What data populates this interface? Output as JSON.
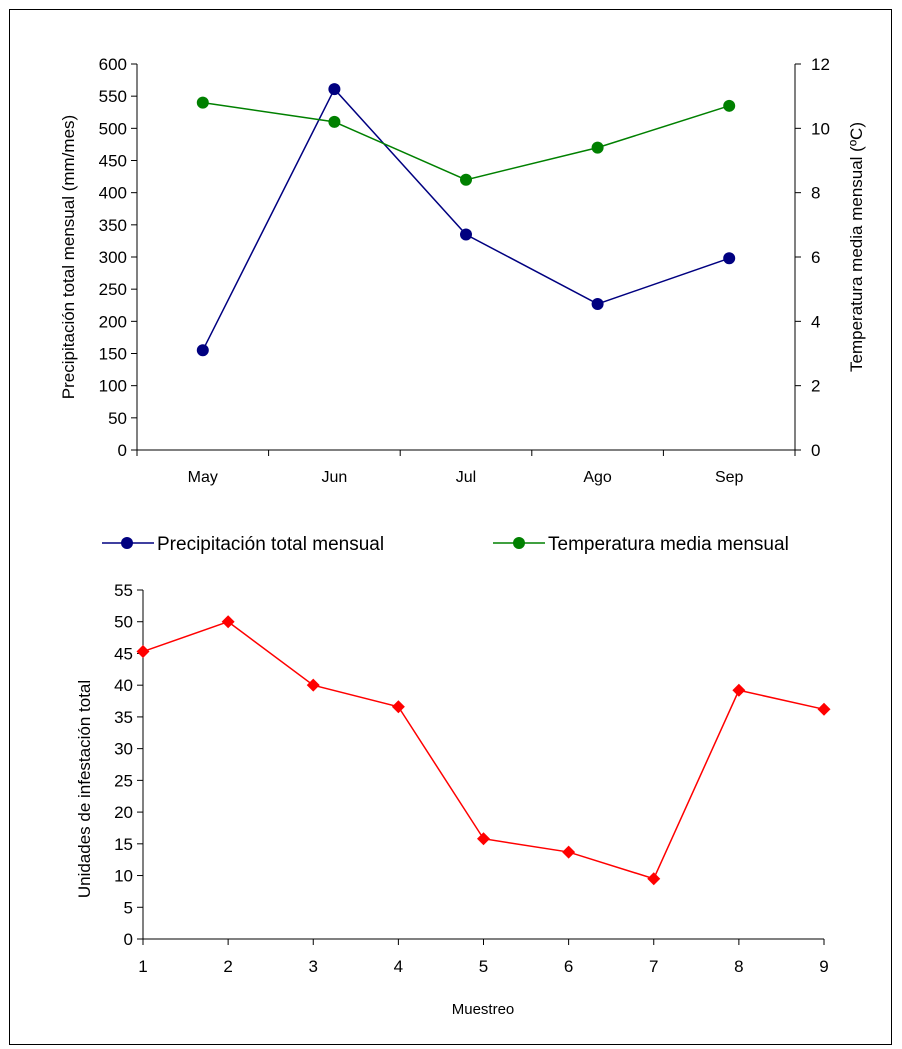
{
  "chart_data": [
    {
      "type": "line",
      "categories": [
        "May",
        "Jun",
        "Jul",
        "Ago",
        "Sep"
      ],
      "ylabel": "Precipitación total mensual (mm/mes)",
      "y2label": "Temperatura media mensual (ºC)",
      "ylim": [
        0,
        600
      ],
      "y2lim": [
        0,
        12
      ],
      "yticks": [
        "0",
        "50",
        "100",
        "150",
        "200",
        "250",
        "300",
        "350",
        "400",
        "450",
        "500",
        "550",
        "600"
      ],
      "y2ticks": [
        "0",
        "2",
        "4",
        "6",
        "8",
        "10",
        "12"
      ],
      "legend_position": "bottom",
      "grid": false,
      "series": [
        {
          "name": "Precipitación total mensual",
          "axis": "left",
          "color": "#000080",
          "marker": "circle",
          "values": [
            155,
            561,
            335,
            227,
            298
          ]
        },
        {
          "name": "Temperatura media mensual",
          "axis": "right",
          "color": "#008000",
          "marker": "circle",
          "values": [
            10.8,
            10.2,
            8.4,
            9.4,
            10.7
          ]
        }
      ]
    },
    {
      "type": "line",
      "x": [
        "1",
        "2",
        "3",
        "4",
        "5",
        "6",
        "7",
        "8",
        "9"
      ],
      "xlabel": "Muestreo",
      "ylabel": "Unidades de infestación total",
      "ylim": [
        0,
        55
      ],
      "yticks": [
        "0",
        "5",
        "10",
        "15",
        "20",
        "25",
        "30",
        "35",
        "40",
        "45",
        "50",
        "55"
      ],
      "grid": false,
      "series": [
        {
          "color": "#ff0000",
          "marker": "diamond",
          "values": [
            45.3,
            50.0,
            40.0,
            36.6,
            15.8,
            13.7,
            9.5,
            39.2,
            36.2
          ]
        }
      ]
    }
  ]
}
